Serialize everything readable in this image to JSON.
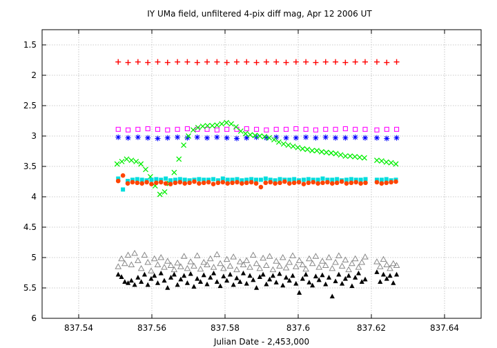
{
  "chart_data": {
    "type": "scatter",
    "title": "IY UMa field, unfiltered 4-pix diff mag, Apr 12 2006 UT",
    "xlabel": "Julian Date - 2,453,000",
    "ylabel": "",
    "xlim": [
      837.53,
      837.65
    ],
    "ylim": [
      6.0,
      1.25
    ],
    "y_inverted": true,
    "grid": true,
    "legend": "none",
    "xticks": [
      "837.54",
      "837.56",
      "837.58",
      "837.6",
      "837.62",
      "837.64"
    ],
    "xtick_values": [
      837.54,
      837.56,
      837.58,
      837.6,
      837.62,
      837.64
    ],
    "yticks": [
      "1.5",
      "2",
      "2.5",
      "3",
      "3.5",
      "4",
      "4.5",
      "5",
      "5.5",
      "6"
    ],
    "ytick_values": [
      1.5,
      2.0,
      2.5,
      3.0,
      3.5,
      4.0,
      4.5,
      5.0,
      5.5,
      6.0
    ],
    "series": [
      {
        "marker": "plus",
        "color": "#ff0000",
        "x": [
          837.5508,
          837.5535,
          837.5562,
          837.5589,
          837.5616,
          837.5643,
          837.567,
          837.5697,
          837.5724,
          837.5751,
          837.5778,
          837.5805,
          837.5832,
          837.5859,
          837.5886,
          837.5913,
          837.594,
          837.5967,
          837.5994,
          837.6021,
          837.6048,
          837.6075,
          837.6102,
          837.6129,
          837.6156,
          837.6183,
          837.6215,
          837.6242,
          837.6269
        ],
        "y": [
          1.78,
          1.79,
          1.78,
          1.79,
          1.78,
          1.79,
          1.78,
          1.78,
          1.79,
          1.78,
          1.78,
          1.79,
          1.78,
          1.78,
          1.79,
          1.78,
          1.78,
          1.79,
          1.78,
          1.78,
          1.79,
          1.78,
          1.78,
          1.79,
          1.78,
          1.78,
          1.78,
          1.79,
          1.78
        ]
      },
      {
        "marker": "square-open",
        "color": "#ff00ff",
        "x": [
          837.5508,
          837.5535,
          837.5562,
          837.5589,
          837.5616,
          837.5643,
          837.567,
          837.5697,
          837.5724,
          837.5751,
          837.5778,
          837.5805,
          837.5832,
          837.5859,
          837.5886,
          837.5913,
          837.594,
          837.5967,
          837.5994,
          837.6021,
          837.6048,
          837.6075,
          837.6102,
          837.6129,
          837.6156,
          837.6183,
          837.6215,
          837.6242,
          837.6269
        ],
        "y": [
          2.89,
          2.9,
          2.89,
          2.88,
          2.89,
          2.9,
          2.89,
          2.88,
          2.89,
          2.89,
          2.9,
          2.89,
          2.89,
          2.88,
          2.89,
          2.9,
          2.89,
          2.89,
          2.88,
          2.89,
          2.9,
          2.89,
          2.89,
          2.88,
          2.89,
          2.89,
          2.9,
          2.89,
          2.89
        ]
      },
      {
        "marker": "star",
        "color": "#0000ff",
        "x": [
          837.5508,
          837.5535,
          837.5562,
          837.5589,
          837.5616,
          837.5643,
          837.567,
          837.5697,
          837.5724,
          837.5751,
          837.5778,
          837.5805,
          837.5832,
          837.5859,
          837.5886,
          837.5913,
          837.594,
          837.5967,
          837.5994,
          837.6021,
          837.6048,
          837.6075,
          837.6102,
          837.6129,
          837.6156,
          837.6183,
          837.6215,
          837.6242,
          837.6269
        ],
        "y": [
          3.02,
          3.03,
          3.02,
          3.03,
          3.04,
          3.03,
          3.02,
          3.03,
          3.02,
          3.03,
          3.02,
          3.03,
          3.04,
          3.03,
          3.02,
          3.03,
          3.02,
          3.03,
          3.03,
          3.02,
          3.03,
          3.02,
          3.03,
          3.03,
          3.02,
          3.03,
          3.03,
          3.04,
          3.03
        ]
      },
      {
        "marker": "cross",
        "color": "#00ee00",
        "x": [
          837.5505,
          837.5518,
          837.5531,
          837.5544,
          837.5557,
          837.557,
          837.5583,
          837.5596,
          837.5609,
          837.5622,
          837.5635,
          837.5648,
          837.5661,
          837.5674,
          837.5687,
          837.57,
          837.5713,
          837.5726,
          837.5739,
          837.5752,
          837.5765,
          837.5778,
          837.5791,
          837.5804,
          837.5817,
          837.583,
          837.5843,
          837.5856,
          837.5869,
          837.5882,
          837.5895,
          837.5908,
          837.5921,
          837.5934,
          837.5947,
          837.596,
          837.5973,
          837.5986,
          837.5999,
          837.6012,
          837.6025,
          837.6038,
          837.6051,
          837.6064,
          837.6077,
          837.609,
          837.6103,
          837.6116,
          837.6129,
          837.6142,
          837.6155,
          837.6168,
          837.6181,
          837.6215,
          837.6228,
          837.6241,
          837.6254,
          837.6267
        ],
        "y": [
          3.46,
          3.42,
          3.38,
          3.4,
          3.42,
          3.46,
          3.55,
          3.67,
          3.82,
          3.96,
          3.92,
          3.78,
          3.6,
          3.38,
          3.15,
          3.0,
          2.9,
          2.86,
          2.84,
          2.83,
          2.83,
          2.82,
          2.8,
          2.78,
          2.8,
          2.85,
          2.92,
          2.96,
          2.98,
          2.99,
          3.0,
          3.01,
          3.03,
          3.06,
          3.1,
          3.13,
          3.15,
          3.17,
          3.19,
          3.21,
          3.22,
          3.24,
          3.24,
          3.26,
          3.27,
          3.28,
          3.29,
          3.31,
          3.33,
          3.33,
          3.34,
          3.35,
          3.36,
          3.4,
          3.41,
          3.43,
          3.44,
          3.46
        ]
      },
      {
        "marker": "square",
        "color": "#00dddd",
        "x": [
          837.5508,
          837.5521,
          837.5534,
          837.5547,
          837.556,
          837.5573,
          837.5586,
          837.5599,
          837.5612,
          837.5625,
          837.5638,
          837.5651,
          837.5664,
          837.5677,
          837.569,
          837.5703,
          837.5716,
          837.5729,
          837.5742,
          837.5755,
          837.5768,
          837.5781,
          837.5794,
          837.5807,
          837.582,
          837.5833,
          837.5846,
          837.5859,
          837.5872,
          837.5885,
          837.5898,
          837.5911,
          837.5924,
          837.5937,
          837.595,
          837.5963,
          837.5976,
          837.5989,
          837.6002,
          837.6015,
          837.6028,
          837.6041,
          837.6054,
          837.6067,
          837.608,
          837.6093,
          837.6106,
          837.6119,
          837.6132,
          837.6145,
          837.6158,
          837.6171,
          837.6184,
          837.6215,
          837.6228,
          837.6241,
          837.6254,
          837.6267
        ],
        "y": [
          3.7,
          3.88,
          3.74,
          3.72,
          3.71,
          3.72,
          3.73,
          3.72,
          3.71,
          3.72,
          3.7,
          3.73,
          3.72,
          3.71,
          3.72,
          3.73,
          3.72,
          3.71,
          3.72,
          3.72,
          3.71,
          3.73,
          3.7,
          3.72,
          3.72,
          3.71,
          3.73,
          3.72,
          3.71,
          3.72,
          3.72,
          3.7,
          3.72,
          3.73,
          3.71,
          3.72,
          3.72,
          3.71,
          3.73,
          3.72,
          3.71,
          3.72,
          3.72,
          3.7,
          3.72,
          3.72,
          3.71,
          3.73,
          3.72,
          3.71,
          3.72,
          3.72,
          3.71,
          3.72,
          3.72,
          3.71,
          3.73,
          3.72
        ]
      },
      {
        "marker": "circle",
        "color": "#ff4400",
        "x": [
          837.5508,
          837.5521,
          837.5534,
          837.5547,
          837.556,
          837.5573,
          837.5586,
          837.5599,
          837.5612,
          837.5625,
          837.5638,
          837.5651,
          837.5664,
          837.5677,
          837.569,
          837.5703,
          837.5716,
          837.5729,
          837.5742,
          837.5755,
          837.5768,
          837.5781,
          837.5794,
          837.5807,
          837.582,
          837.5833,
          837.5846,
          837.5859,
          837.5872,
          837.5885,
          837.5898,
          837.5911,
          837.5924,
          837.5937,
          837.595,
          837.5963,
          837.5976,
          837.5989,
          837.6002,
          837.6015,
          837.6028,
          837.6041,
          837.6054,
          837.6067,
          837.608,
          837.6093,
          837.6106,
          837.6119,
          837.6132,
          837.6145,
          837.6158,
          837.6171,
          837.6184,
          837.6215,
          837.6228,
          837.6241,
          837.6254,
          837.6267
        ],
        "y": [
          3.74,
          3.65,
          3.78,
          3.76,
          3.77,
          3.78,
          3.76,
          3.79,
          3.77,
          3.76,
          3.78,
          3.79,
          3.77,
          3.76,
          3.78,
          3.77,
          3.75,
          3.78,
          3.77,
          3.76,
          3.79,
          3.77,
          3.76,
          3.78,
          3.77,
          3.76,
          3.78,
          3.77,
          3.76,
          3.78,
          3.84,
          3.77,
          3.76,
          3.78,
          3.77,
          3.75,
          3.78,
          3.77,
          3.76,
          3.79,
          3.77,
          3.76,
          3.78,
          3.77,
          3.76,
          3.78,
          3.77,
          3.75,
          3.78,
          3.77,
          3.76,
          3.78,
          3.77,
          3.76,
          3.78,
          3.77,
          3.76,
          3.75
        ]
      },
      {
        "marker": "triangle-open",
        "color": "#888888",
        "x": [
          837.5508,
          837.5517,
          837.5526,
          837.5535,
          837.5544,
          837.5553,
          837.5562,
          837.5571,
          837.558,
          837.5589,
          837.5598,
          837.5607,
          837.5616,
          837.5625,
          837.5634,
          837.5643,
          837.5652,
          837.5661,
          837.567,
          837.5679,
          837.5688,
          837.5697,
          837.5706,
          837.5715,
          837.5724,
          837.5733,
          837.5742,
          837.5751,
          837.576,
          837.5769,
          837.5778,
          837.5787,
          837.5796,
          837.5805,
          837.5814,
          837.5823,
          837.5832,
          837.5841,
          837.585,
          837.5859,
          837.5868,
          837.5877,
          837.5886,
          837.5895,
          837.5904,
          837.5913,
          837.5922,
          837.5931,
          837.594,
          837.5949,
          837.5958,
          837.5967,
          837.5976,
          837.5985,
          837.5994,
          837.6003,
          837.6012,
          837.6021,
          837.603,
          837.6039,
          837.6048,
          837.6057,
          837.6066,
          837.6075,
          837.6084,
          837.6093,
          837.6102,
          837.6111,
          837.612,
          837.6129,
          837.6138,
          837.6147,
          837.6156,
          837.6165,
          837.6174,
          837.6183,
          837.6215,
          837.6224,
          837.6233,
          837.6242,
          837.6251,
          837.626,
          837.6269
        ],
        "y": [
          5.15,
          5.02,
          5.1,
          4.96,
          5.12,
          4.93,
          5.05,
          5.18,
          4.96,
          5.08,
          5.22,
          5.02,
          5.12,
          5.0,
          5.16,
          5.06,
          5.13,
          5.2,
          5.09,
          5.15,
          4.98,
          5.18,
          5.07,
          5.14,
          4.97,
          5.19,
          5.08,
          5.12,
          5.02,
          5.16,
          4.95,
          5.1,
          5.18,
          5.03,
          5.14,
          4.99,
          5.2,
          5.07,
          5.12,
          5.05,
          5.16,
          4.96,
          5.1,
          5.18,
          5.01,
          5.13,
          4.98,
          5.2,
          5.06,
          5.14,
          5.0,
          5.17,
          5.08,
          4.97,
          5.15,
          5.05,
          5.12,
          5.19,
          5.02,
          5.1,
          4.98,
          5.16,
          5.06,
          5.13,
          5.0,
          5.18,
          5.08,
          4.97,
          5.14,
          5.04,
          5.2,
          5.1,
          5.02,
          5.16,
          5.08,
          4.99,
          5.07,
          5.15,
          5.03,
          5.12,
          5.18,
          5.1,
          5.13
        ]
      },
      {
        "marker": "triangle",
        "color": "#000000",
        "x": [
          837.5508,
          837.5517,
          837.5526,
          837.5535,
          837.5544,
          837.5553,
          837.5562,
          837.5571,
          837.558,
          837.5589,
          837.5598,
          837.5607,
          837.5616,
          837.5625,
          837.5634,
          837.5643,
          837.5652,
          837.5661,
          837.567,
          837.5679,
          837.5688,
          837.5697,
          837.5706,
          837.5715,
          837.5724,
          837.5733,
          837.5742,
          837.5751,
          837.576,
          837.5769,
          837.5778,
          837.5787,
          837.5796,
          837.5805,
          837.5814,
          837.5823,
          837.5832,
          837.5841,
          837.585,
          837.5859,
          837.5868,
          837.5877,
          837.5886,
          837.5895,
          837.5904,
          837.5913,
          837.5922,
          837.5931,
          837.594,
          837.5949,
          837.5958,
          837.5967,
          837.5976,
          837.5985,
          837.5994,
          837.6003,
          837.6012,
          837.6021,
          837.603,
          837.6039,
          837.6048,
          837.6057,
          837.6066,
          837.6075,
          837.6084,
          837.6093,
          837.6102,
          837.6111,
          837.612,
          837.6129,
          837.6138,
          837.6147,
          837.6156,
          837.6165,
          837.6174,
          837.6183,
          837.6215,
          837.6224,
          837.6233,
          837.6242,
          837.6251,
          837.626,
          837.6269
        ],
        "y": [
          5.28,
          5.32,
          5.4,
          5.42,
          5.38,
          5.45,
          5.33,
          5.4,
          5.28,
          5.45,
          5.35,
          5.3,
          5.42,
          5.26,
          5.38,
          5.5,
          5.33,
          5.28,
          5.45,
          5.36,
          5.3,
          5.42,
          5.27,
          5.48,
          5.35,
          5.4,
          5.29,
          5.44,
          5.33,
          5.26,
          5.4,
          5.47,
          5.31,
          5.38,
          5.28,
          5.45,
          5.34,
          5.4,
          5.26,
          5.43,
          5.3,
          5.37,
          5.5,
          5.32,
          5.28,
          5.44,
          5.36,
          5.3,
          5.41,
          5.27,
          5.46,
          5.33,
          5.38,
          5.3,
          5.43,
          5.58,
          5.35,
          5.28,
          5.41,
          5.46,
          5.31,
          5.37,
          5.29,
          5.44,
          5.33,
          5.64,
          5.39,
          5.28,
          5.43,
          5.35,
          5.3,
          5.47,
          5.33,
          5.26,
          5.4,
          5.36,
          5.24,
          5.4,
          5.28,
          5.35,
          5.3,
          5.42,
          5.28
        ]
      }
    ]
  }
}
